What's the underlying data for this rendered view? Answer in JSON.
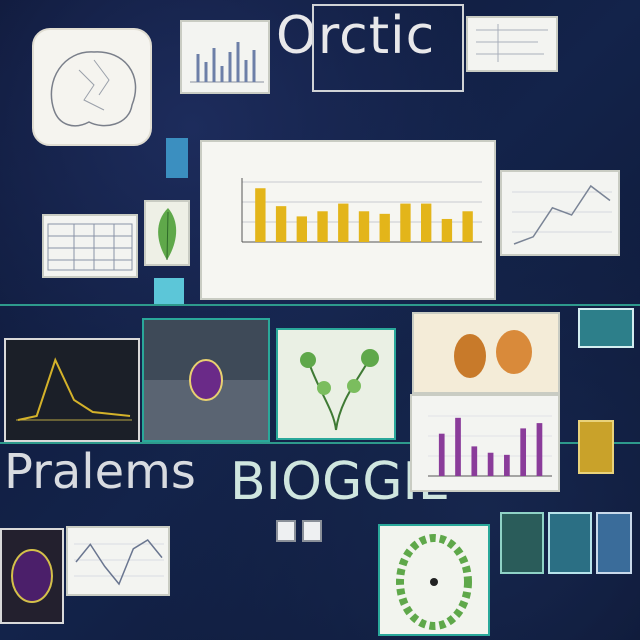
{
  "board": {
    "title_top": "Orctic",
    "title_bottom_left": "Pralems",
    "title_bottom_right": "BIOGGIL"
  },
  "colors": {
    "board": "#0f1a3a",
    "chalk_yellow": "#d8d455",
    "accent_teal": "#2aa89a",
    "bar_gold": "#e3b51a",
    "bar_purple": "#8a3c9a",
    "leaf_green": "#5fa84a"
  },
  "icons": {
    "brain_sketch": "brain-icon",
    "plant": "leaf-icon",
    "seed": "seed-icon",
    "cell": "cell-icon",
    "petri": "petri-dish-icon"
  },
  "chart_data": [
    {
      "type": "bar",
      "values": [
        42,
        28,
        20,
        24,
        30,
        24,
        22,
        30,
        30,
        18,
        24
      ],
      "ylim": [
        0,
        50
      ],
      "grid": true
    },
    {
      "type": "bar",
      "values": [
        40,
        55,
        28,
        22,
        20,
        45,
        50
      ],
      "grid": true
    },
    {
      "type": "line",
      "values": [
        5,
        10,
        30,
        25,
        45,
        35
      ],
      "grid": true
    },
    {
      "type": "line",
      "values": [
        0,
        2,
        30,
        10,
        4,
        3,
        2
      ],
      "grid": false
    },
    {
      "type": "line",
      "values": [
        20,
        28,
        18,
        10,
        26,
        30,
        22
      ],
      "grid": true
    }
  ]
}
